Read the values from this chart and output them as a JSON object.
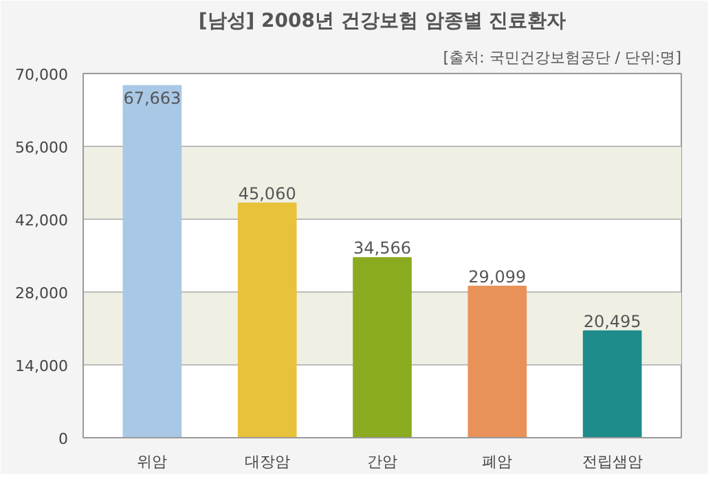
{
  "chart_data": {
    "type": "bar",
    "title": "[남성] 2008년 건강보험 암종별 진료환자",
    "subtitle": "[출처: 국민건강보험공단 / 단위:명]",
    "categories": [
      "위암",
      "대장암",
      "간암",
      "폐암",
      "전립샘암"
    ],
    "values": [
      67663,
      45060,
      34566,
      29099,
      20495
    ],
    "colors": [
      "#a9c8e6",
      "#e8c23a",
      "#8aab1f",
      "#e8925a",
      "#1e8c8a"
    ],
    "ylim": [
      0,
      70000
    ],
    "yticks": [
      {
        "value": 0,
        "label": "0"
      },
      {
        "value": 14000,
        "label": "14,000"
      },
      {
        "value": 28000,
        "label": "28,000"
      },
      {
        "value": 42000,
        "label": "42,000"
      },
      {
        "value": 56000,
        "label": "56,000"
      },
      {
        "value": 70000,
        "label": "70,000"
      }
    ],
    "value_labels": [
      "67,663",
      "45,060",
      "34,566",
      "29,099",
      "20,495"
    ],
    "grid": "y"
  }
}
